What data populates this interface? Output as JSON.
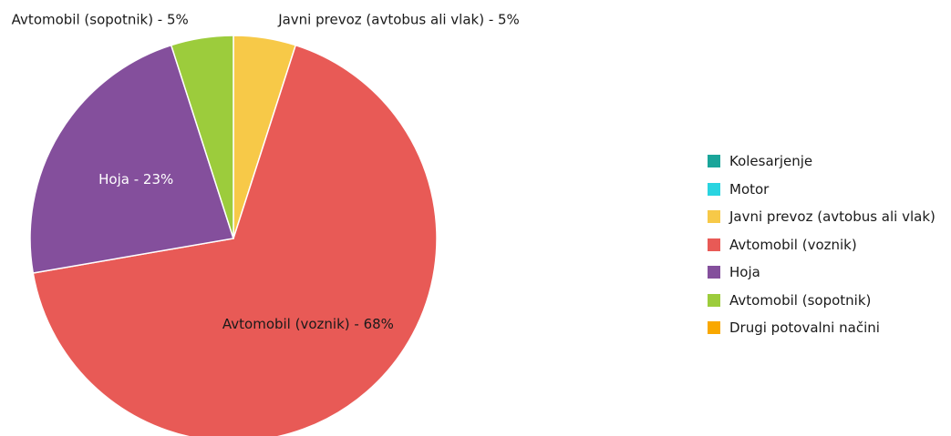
{
  "chart_data": {
    "type": "pie",
    "title": "",
    "start": "12 o'clock",
    "direction": "clockwise",
    "slices": [
      {
        "label": "Kolesarjenje",
        "value": 0,
        "color": "#1aa59a"
      },
      {
        "label": "Motor",
        "value": 0,
        "color": "#2ad4e0"
      },
      {
        "label": "Javni prevoz (avtobus ali vlak)",
        "value": 5,
        "color": "#f7c948",
        "data_label": "Javni prevoz (avtobus ali vlak) - 5%",
        "label_placement": "outside"
      },
      {
        "label": "Avtomobil (voznik)",
        "value": 68,
        "color": "#e85a56",
        "data_label": "Avtomobil (voznik) - 68%",
        "label_placement": "inside"
      },
      {
        "label": "Hoja",
        "value": 23,
        "color": "#844f9c",
        "data_label": "Hoja - 23%",
        "label_placement": "inside"
      },
      {
        "label": "Avtomobil (sopotnik)",
        "value": 5,
        "color": "#9ccc3c",
        "data_label": "Avtomobil (sopotnik) - 5%",
        "label_placement": "outside"
      },
      {
        "label": "Drugi potovalni načini",
        "value": 0,
        "color": "#f9a800"
      }
    ],
    "legend_position": "right"
  }
}
